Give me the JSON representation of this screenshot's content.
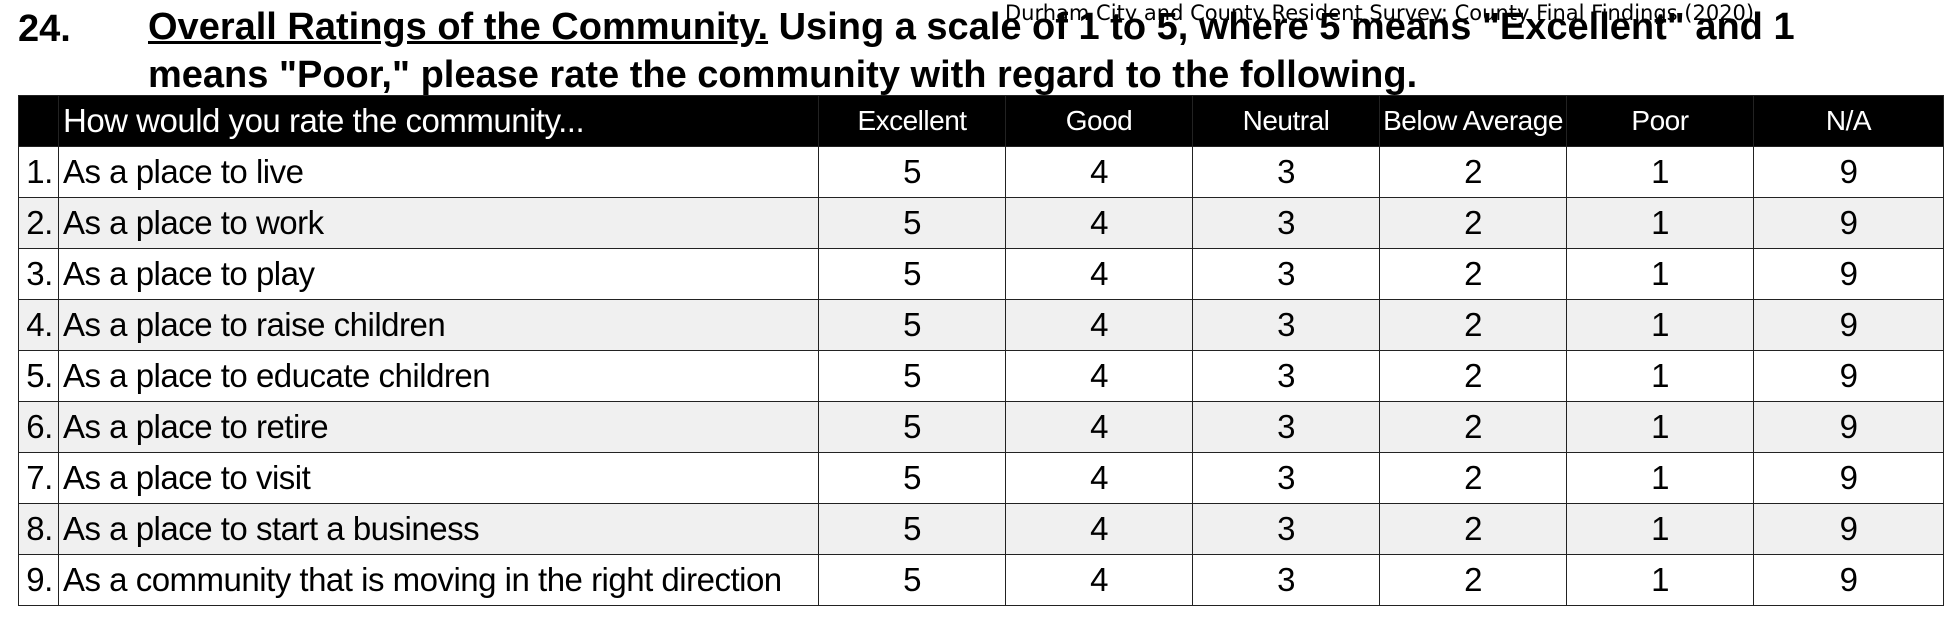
{
  "running_header": "Durham City and County Resident Survey: County Final Findings (2020)",
  "question": {
    "number": "24.",
    "title": "Overall Ratings of the Community.",
    "line1_rest": " Using a scale of 1 to 5, where 5 means \"Excellent\" and 1",
    "line2": "means \"Poor,\" please rate the community with regard to the following."
  },
  "table": {
    "prompt_header": "How would you rate the community...",
    "columns": [
      "Excellent",
      "Good",
      "Neutral",
      "Below Average",
      "Poor",
      "N/A"
    ],
    "rows": [
      {
        "num": "1.",
        "label": "As a place to live",
        "values": [
          "5",
          "4",
          "3",
          "2",
          "1",
          "9"
        ]
      },
      {
        "num": "2.",
        "label": "As a place to work",
        "values": [
          "5",
          "4",
          "3",
          "2",
          "1",
          "9"
        ]
      },
      {
        "num": "3.",
        "label": "As a place to play",
        "values": [
          "5",
          "4",
          "3",
          "2",
          "1",
          "9"
        ]
      },
      {
        "num": "4.",
        "label": "As a place to raise children",
        "values": [
          "5",
          "4",
          "3",
          "2",
          "1",
          "9"
        ]
      },
      {
        "num": "5.",
        "label": "As a place to educate children",
        "values": [
          "5",
          "4",
          "3",
          "2",
          "1",
          "9"
        ]
      },
      {
        "num": "6.",
        "label": "As a place to retire",
        "values": [
          "5",
          "4",
          "3",
          "2",
          "1",
          "9"
        ]
      },
      {
        "num": "7.",
        "label": "As a place to visit",
        "values": [
          "5",
          "4",
          "3",
          "2",
          "1",
          "9"
        ]
      },
      {
        "num": "8.",
        "label": "As a place to start a business",
        "values": [
          "5",
          "4",
          "3",
          "2",
          "1",
          "9"
        ]
      },
      {
        "num": "9.",
        "label": "As a community that is moving in the right direction",
        "values": [
          "5",
          "4",
          "3",
          "2",
          "1",
          "9"
        ]
      }
    ]
  }
}
